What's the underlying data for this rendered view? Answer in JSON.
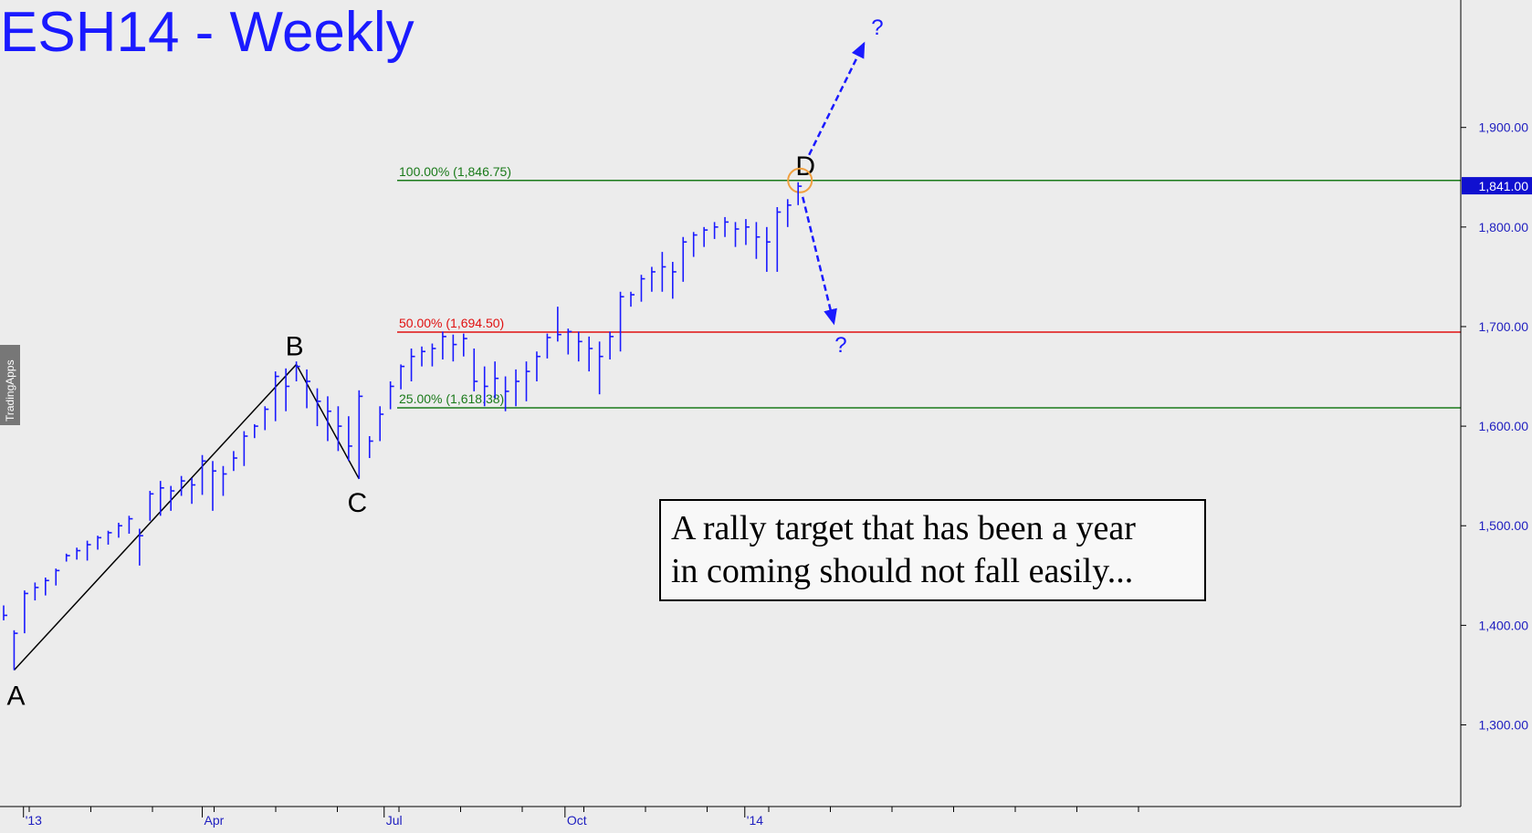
{
  "chart_data": {
    "type": "bar",
    "title": "ESH14 - Weekly",
    "bar_style": "ohlc-weekly",
    "series_color": "#1a1aff",
    "y_axis": {
      "side": "right",
      "ticks": [
        1300,
        1400,
        1500,
        1600,
        1700,
        1800,
        1900
      ],
      "tick_labels": [
        "1,300.00",
        "1,400.00",
        "1,500.00",
        "1,600.00",
        "1,700.00",
        "1,800.00",
        "1,900.00"
      ],
      "ylim": [
        1218,
        2028
      ],
      "last_price": 1841,
      "last_price_label": "1,841.00"
    },
    "x_axis": {
      "tick_labels": [
        "'13",
        "Apr",
        "Jul",
        "Oct",
        "'14"
      ]
    },
    "ohlc": [
      [
        1420,
        1405,
        1410
      ],
      [
        1395,
        1355,
        1392
      ],
      [
        1435,
        1392,
        1432
      ],
      [
        1443,
        1425,
        1438
      ],
      [
        1448,
        1430,
        1445
      ],
      [
        1457,
        1440,
        1455
      ],
      [
        1472,
        1464,
        1470
      ],
      [
        1478,
        1466,
        1475
      ],
      [
        1485,
        1465,
        1481
      ],
      [
        1490,
        1476,
        1488
      ],
      [
        1495,
        1481,
        1493
      ],
      [
        1503,
        1488,
        1500
      ],
      [
        1510,
        1492,
        1507
      ],
      [
        1497,
        1460,
        1490
      ],
      [
        1535,
        1505,
        1532
      ],
      [
        1545,
        1510,
        1538
      ],
      [
        1540,
        1515,
        1535
      ],
      [
        1550,
        1530,
        1545
      ],
      [
        1548,
        1522,
        1541
      ],
      [
        1571,
        1531,
        1565
      ],
      [
        1565,
        1515,
        1555
      ],
      [
        1560,
        1530,
        1552
      ],
      [
        1575,
        1555,
        1568
      ],
      [
        1595,
        1560,
        1590
      ],
      [
        1602,
        1588,
        1600
      ],
      [
        1620,
        1596,
        1617
      ],
      [
        1655,
        1605,
        1650
      ],
      [
        1658,
        1615,
        1640
      ],
      [
        1665,
        1645,
        1660
      ],
      [
        1657,
        1618,
        1645
      ],
      [
        1638,
        1600,
        1625
      ],
      [
        1630,
        1585,
        1615
      ],
      [
        1620,
        1575,
        1600
      ],
      [
        1610,
        1565,
        1580
      ],
      [
        1636,
        1547,
        1630
      ],
      [
        1590,
        1568,
        1585
      ],
      [
        1620,
        1585,
        1612
      ],
      [
        1645,
        1617,
        1640
      ],
      [
        1662,
        1637,
        1660
      ],
      [
        1678,
        1645,
        1670
      ],
      [
        1680,
        1660,
        1675
      ],
      [
        1683,
        1660,
        1678
      ],
      [
        1695,
        1667,
        1690
      ],
      [
        1692,
        1665,
        1682
      ],
      [
        1693,
        1670,
        1688
      ],
      [
        1678,
        1635,
        1645
      ],
      [
        1660,
        1620,
        1640
      ],
      [
        1665,
        1628,
        1648
      ],
      [
        1650,
        1615,
        1635
      ],
      [
        1657,
        1620,
        1645
      ],
      [
        1665,
        1625,
        1655
      ],
      [
        1675,
        1645,
        1670
      ],
      [
        1693,
        1668,
        1689
      ],
      [
        1720,
        1685,
        1692
      ],
      [
        1698,
        1672,
        1695
      ],
      [
        1695,
        1665,
        1685
      ],
      [
        1690,
        1655,
        1678
      ],
      [
        1685,
        1632,
        1670
      ],
      [
        1695,
        1667,
        1690
      ],
      [
        1735,
        1675,
        1730
      ],
      [
        1735,
        1720,
        1732
      ],
      [
        1752,
        1725,
        1748
      ],
      [
        1760,
        1735,
        1755
      ],
      [
        1775,
        1735,
        1760
      ],
      [
        1765,
        1728,
        1755
      ],
      [
        1790,
        1745,
        1785
      ],
      [
        1795,
        1770,
        1792
      ],
      [
        1800,
        1780,
        1797
      ],
      [
        1805,
        1788,
        1800
      ],
      [
        1810,
        1790,
        1805
      ],
      [
        1805,
        1780,
        1798
      ],
      [
        1808,
        1782,
        1800
      ],
      [
        1805,
        1768,
        1790
      ],
      [
        1800,
        1755,
        1785
      ],
      [
        1820,
        1755,
        1815
      ],
      [
        1828,
        1800,
        1822
      ],
      [
        1845,
        1822,
        1841
      ]
    ],
    "levels": [
      {
        "label": "100.00% (1,846.75)",
        "value": 1846.75,
        "color": "#1a7a1a"
      },
      {
        "label": "50.00% (1,694.50)",
        "value": 1694.5,
        "color": "#e01010"
      },
      {
        "label": "25.00% (1,618.38)",
        "value": 1618.38,
        "color": "#1a7a1a"
      }
    ],
    "pattern": {
      "points": [
        {
          "label": "A",
          "bar": 1,
          "value": 1355
        },
        {
          "label": "B",
          "bar": 28,
          "value": 1662
        },
        {
          "label": "C",
          "bar": 34,
          "value": 1547
        },
        {
          "label": "D",
          "bar": 76,
          "value": 1846.75
        }
      ],
      "color": "#000000"
    },
    "projections": {
      "up_label": "?",
      "down_label": "?",
      "down_target": 1694.5,
      "color": "#1a1aff"
    },
    "annotation": "A rally target that has been a year in coming should not fall easily...",
    "watermark": "TradingApps",
    "grid": false,
    "accent_circle_color": "#f0a040"
  }
}
